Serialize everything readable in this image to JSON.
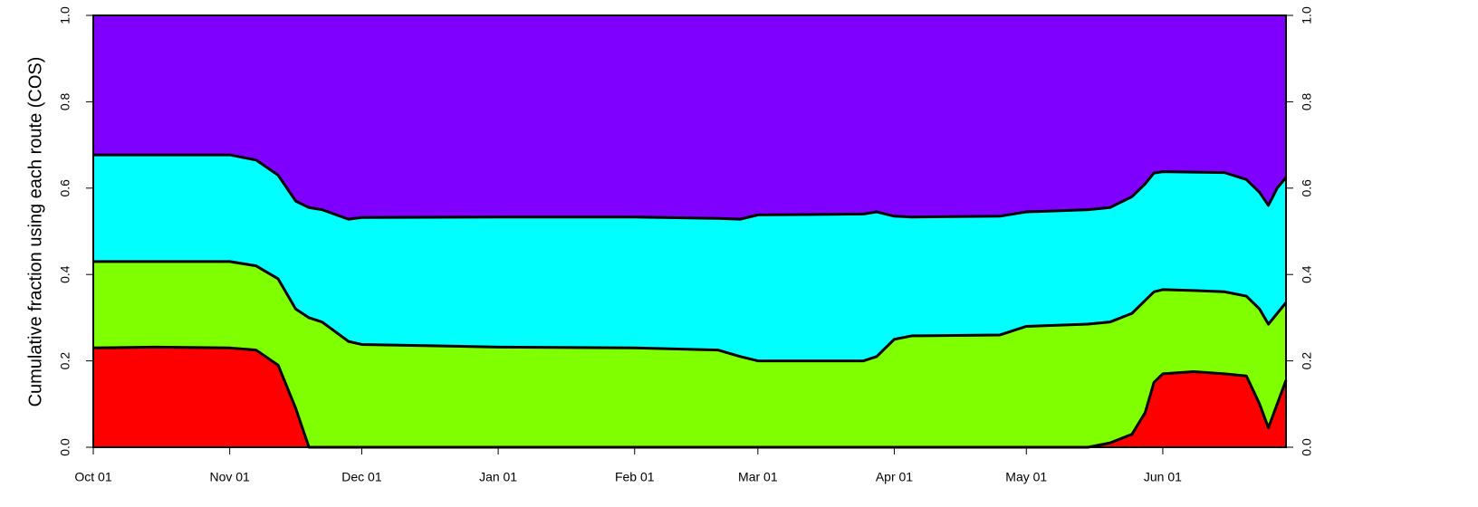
{
  "chart_data": {
    "type": "stacked_area",
    "y_label": "Cumulative fraction using each route (COS)",
    "x": [
      "Oct 01",
      "Oct 15",
      "Nov 01",
      "Nov 07",
      "Nov 12",
      "Nov 16",
      "Nov 19",
      "Nov 22",
      "Nov 28",
      "Dec 01",
      "Jan 01",
      "Feb 01",
      "Feb 20",
      "Feb 25",
      "Mar 01",
      "Mar 25",
      "Mar 28",
      "Apr 01",
      "Apr 05",
      "Apr 25",
      "May 01",
      "May 15",
      "May 20",
      "May 25",
      "May 28",
      "May 30",
      "Jun 01",
      "Jun 08",
      "Jun 15",
      "Jun 20",
      "Jun 23",
      "Jun 25",
      "Jun 27",
      "Jun 29"
    ],
    "series": [
      {
        "color": "#ff0000",
        "values": [
          0.23,
          0.232,
          0.23,
          0.225,
          0.19,
          0.09,
          0,
          0,
          0,
          0,
          0,
          0,
          0,
          0,
          0,
          0,
          0,
          0,
          0,
          0,
          0,
          0,
          0.01,
          0.03,
          0.08,
          0.15,
          0.17,
          0.175,
          0.17,
          0.165,
          0.1,
          0.045,
          0.1,
          0.155
        ]
      },
      {
        "color": "#7fff00",
        "values": [
          0.2,
          0.198,
          0.2,
          0.195,
          0.2,
          0.23,
          0.3,
          0.29,
          0.245,
          0.238,
          0.232,
          0.23,
          0.225,
          0.21,
          0.2,
          0.2,
          0.21,
          0.25,
          0.258,
          0.26,
          0.28,
          0.285,
          0.28,
          0.28,
          0.26,
          0.21,
          0.195,
          0.188,
          0.19,
          0.185,
          0.22,
          0.24,
          0.21,
          0.18
        ]
      },
      {
        "color": "#00ffff",
        "values": [
          0.247,
          0.247,
          0.247,
          0.245,
          0.24,
          0.25,
          0.255,
          0.26,
          0.283,
          0.294,
          0.301,
          0.303,
          0.305,
          0.318,
          0.338,
          0.34,
          0.335,
          0.285,
          0.275,
          0.275,
          0.265,
          0.265,
          0.265,
          0.27,
          0.27,
          0.275,
          0.273,
          0.274,
          0.276,
          0.27,
          0.27,
          0.275,
          0.29,
          0.29
        ]
      },
      {
        "color": "#8000ff",
        "values": [
          0.323,
          0.323,
          0.323,
          0.335,
          0.37,
          0.43,
          0.445,
          0.45,
          0.472,
          0.468,
          0.467,
          0.467,
          0.47,
          0.472,
          0.462,
          0.46,
          0.455,
          0.465,
          0.467,
          0.465,
          0.455,
          0.45,
          0.445,
          0.42,
          0.39,
          0.365,
          0.362,
          0.363,
          0.364,
          0.38,
          0.41,
          0.44,
          0.4,
          0.375
        ]
      }
    ],
    "xlim": [
      "Oct 01",
      "Jun 29"
    ],
    "xticks": [
      "Oct 01",
      "Nov 01",
      "Dec 01",
      "Jan 01",
      "Feb 01",
      "Mar 01",
      "Apr 01",
      "May 01",
      "Jun 01"
    ],
    "ylim": [
      0,
      1
    ],
    "yticks": [
      {
        "value": 0,
        "label": "0.0"
      },
      {
        "value": 0.2,
        "label": "0.2"
      },
      {
        "value": 0.4,
        "label": "0.4"
      },
      {
        "value": 0.6,
        "label": "0.6"
      },
      {
        "value": 0.8,
        "label": "0.8"
      },
      {
        "value": 1,
        "label": "1.0"
      }
    ],
    "y2lim": [
      0,
      1
    ],
    "y2ticks": [
      {
        "value": 0,
        "label": "0.0"
      },
      {
        "value": 0.2,
        "label": "0.2"
      },
      {
        "value": 0.4,
        "label": "0.4"
      },
      {
        "value": 0.6,
        "label": "0.6"
      },
      {
        "value": 0.8,
        "label": "0.8"
      },
      {
        "value": 1,
        "label": "1.0"
      }
    ]
  }
}
